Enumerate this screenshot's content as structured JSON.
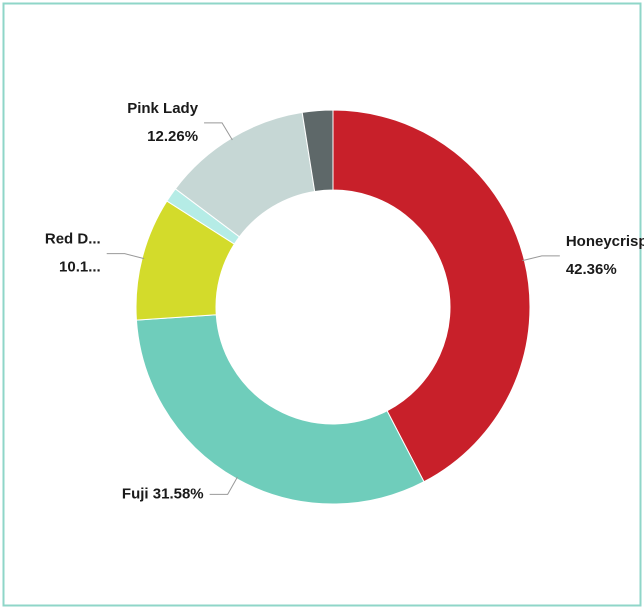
{
  "chart_data": {
    "type": "donut",
    "categories": [
      "Honeycrisp",
      "Fuji",
      "Red D...",
      null,
      "Pink Lady",
      null
    ],
    "values": [
      42.36,
      31.58,
      10.1,
      1.2,
      12.26,
      2.5
    ],
    "value_labels": [
      "42.36%",
      "31.58%",
      "10.1...",
      null,
      "12.26%",
      null
    ],
    "colors": [
      "#c8202a",
      "#6fcdbb",
      "#d3db2b",
      "#b5ece6",
      "#c6d7d5",
      "#5e6869"
    ]
  }
}
